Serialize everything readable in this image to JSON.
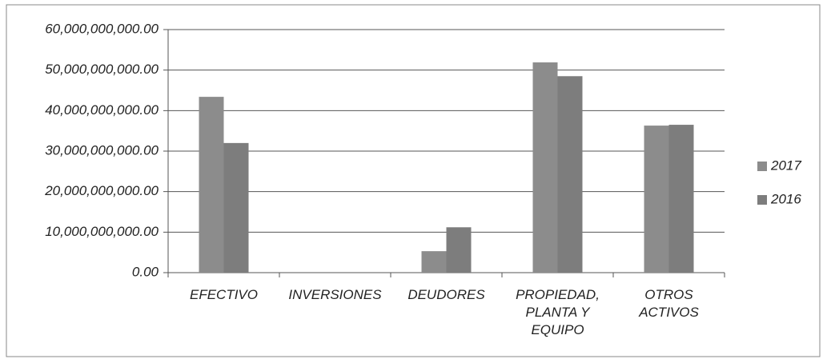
{
  "chart_data": {
    "type": "bar",
    "categories": [
      "EFECTIVO",
      "INVERSIONES",
      "DEUDORES",
      "PROPIEDAD, PLANTA Y EQUIPO",
      "OTROS ACTIVOS"
    ],
    "series": [
      {
        "name": "2017",
        "color": "#8c8c8c",
        "values": [
          43400000000,
          0,
          5300000000,
          51900000000,
          36300000000
        ]
      },
      {
        "name": "2016",
        "color": "#7d7d7d",
        "values": [
          32000000000,
          0,
          11200000000,
          48500000000,
          36500000000
        ]
      }
    ],
    "ylim": [
      0,
      60000000000
    ],
    "yticks": [
      {
        "value": 0,
        "label": "0.00"
      },
      {
        "value": 10000000000,
        "label": "10,000,000,000.00"
      },
      {
        "value": 20000000000,
        "label": "20,000,000,000.00"
      },
      {
        "value": 30000000000,
        "label": "30,000,000,000.00"
      },
      {
        "value": 40000000000,
        "label": "40,000,000,000.00"
      },
      {
        "value": 50000000000,
        "label": "50,000,000,000.00"
      },
      {
        "value": 60000000000,
        "label": "60,000,000,000.00"
      }
    ],
    "grid": true,
    "legend": "right"
  }
}
